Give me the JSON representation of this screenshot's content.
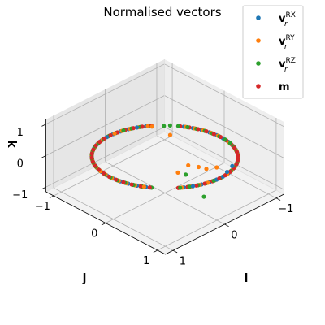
{
  "chart_data": {
    "type": "scatter",
    "subtype": "3d",
    "title": "Normalised vectors",
    "xlabel": "i",
    "ylabel": "j",
    "zlabel": "k",
    "xlim": [
      -1.15,
      1.15
    ],
    "ylim": [
      -1.15,
      1.15
    ],
    "zlim": [
      -1.15,
      1.15
    ],
    "xticks": [
      -1,
      0,
      1
    ],
    "yticks": [
      -1,
      0,
      1
    ],
    "zticks": [
      -1,
      0,
      1
    ],
    "xtick_labels": [
      "−1",
      "0",
      "1"
    ],
    "ytick_labels": [
      "−1",
      "0",
      "1"
    ],
    "ztick_labels": [
      "−1",
      "0",
      "1"
    ],
    "grid": true,
    "legend_position": "top-right",
    "description_of_data": "Unit vectors forming a ring (great circle) through the poles, plus a few scattered points near the top and bottom.",
    "series": [
      {
        "name": "RX",
        "label_main": "v",
        "label_sub": "r",
        "label_sup": "RX",
        "color": "#1f77b4",
        "ring_phase": 0.0,
        "extras": [
          [
            0.9,
            -0.3,
            0.05
          ],
          [
            0.75,
            -0.55,
            -0.1
          ]
        ]
      },
      {
        "name": "RY",
        "label_main": "v",
        "label_sub": "r",
        "label_sup": "RY",
        "color": "#ff7f0e",
        "ring_phase": 0.2,
        "extras": [
          [
            -0.1,
            0.15,
            1.0
          ],
          [
            0.2,
            0.1,
            0.95
          ],
          [
            0.35,
            -0.1,
            -0.05
          ],
          [
            0.45,
            -0.2,
            -0.1
          ],
          [
            0.3,
            0.05,
            -0.2
          ],
          [
            0.5,
            -0.3,
            -0.2
          ],
          [
            0.6,
            -0.4,
            -0.15
          ]
        ]
      },
      {
        "name": "RZ",
        "label_main": "v",
        "label_sub": "r",
        "label_sup": "RZ",
        "color": "#2ca02c",
        "ring_phase": 0.4,
        "extras": [
          [
            0.0,
            0.02,
            1.0
          ],
          [
            0.05,
            -0.05,
            1.0
          ],
          [
            0.5,
            0.1,
            -0.05
          ],
          [
            0.85,
            0.1,
            -0.45
          ]
        ]
      },
      {
        "name": "m",
        "label_main": "m",
        "label_sub": "",
        "label_sup": "",
        "color": "#d62728",
        "ring_phase": 0.6,
        "extras": []
      }
    ]
  }
}
